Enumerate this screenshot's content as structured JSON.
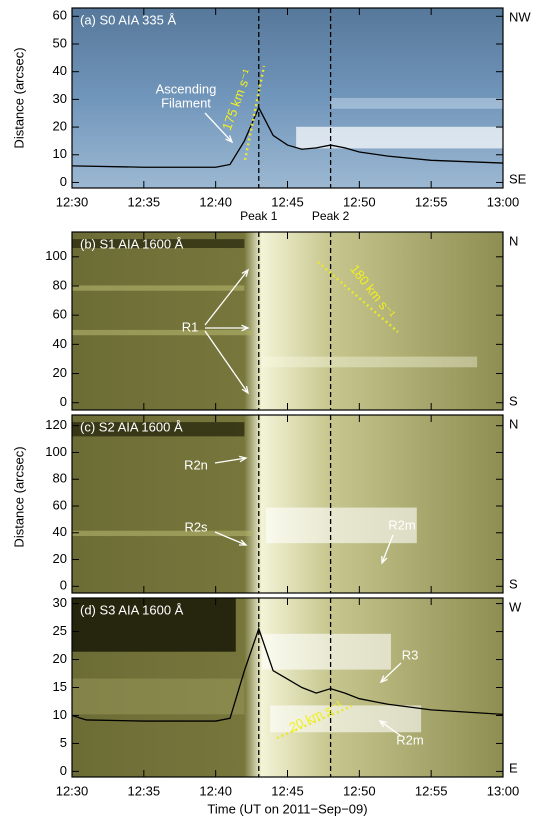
{
  "chart_data": [
    {
      "type": "line",
      "title": "(a) S0 AIA 335 Å",
      "ylabel": "Distance (arcsec)",
      "side_labels": [
        "NW",
        "SE"
      ],
      "background": "blue",
      "xlim": [
        "12:30",
        "13:00"
      ],
      "xticks": [
        "12:30",
        "12:35",
        "12:40",
        "12:45",
        "12:50",
        "12:55",
        "13:00"
      ],
      "show_xtick_labels": true,
      "ylim": [
        -2,
        63
      ],
      "yticks": [
        0,
        10,
        20,
        30,
        40,
        50,
        60
      ],
      "peaks": [
        "12:43",
        "12:48"
      ],
      "peak_labels": [
        "Peak 1",
        "Peak 2"
      ],
      "series": [
        {
          "color": "#000000",
          "x": [
            "12:30",
            "12:35",
            "12:40",
            "12:41",
            "12:42",
            "12:43",
            "12:44",
            "12:45",
            "12:46",
            "12:47",
            "12:48",
            "12:49",
            "12:50",
            "12:52",
            "12:55",
            "13:00"
          ],
          "values": [
            6,
            5.5,
            5.5,
            6.5,
            15,
            27,
            17,
            13.5,
            12,
            12.5,
            13.5,
            12.5,
            11,
            9.5,
            8,
            7
          ]
        }
      ],
      "annotations": [
        "Ascending",
        "Filament",
        "175 km s⁻¹"
      ]
    },
    {
      "type": "line",
      "title": "(b) S1 AIA 1600 Å",
      "side_labels": [
        "N",
        "S"
      ],
      "background": "olive",
      "xlim": [
        "12:30",
        "13:00"
      ],
      "xticks": [
        "12:30",
        "12:35",
        "12:40",
        "12:45",
        "12:50",
        "12:55",
        "13:00"
      ],
      "show_xtick_labels": false,
      "ylim": [
        -5,
        117
      ],
      "yticks": [
        0,
        20,
        40,
        60,
        80,
        100
      ],
      "peaks": [
        "12:43",
        "12:48"
      ],
      "series": [],
      "annotations": [
        "R1",
        "180 km s⁻¹"
      ]
    },
    {
      "type": "line",
      "title": "(c) S2 AIA 1600 Å",
      "ylabel": "Distance (arcsec)",
      "side_labels": [
        "N",
        "S"
      ],
      "background": "olive",
      "xlim": [
        "12:30",
        "13:00"
      ],
      "xticks": [
        "12:30",
        "12:35",
        "12:40",
        "12:45",
        "12:50",
        "12:55",
        "13:00"
      ],
      "show_xtick_labels": false,
      "ylim": [
        -5,
        128
      ],
      "yticks": [
        0,
        20,
        40,
        60,
        80,
        100,
        120
      ],
      "peaks": [
        "12:43",
        "12:48"
      ],
      "series": [],
      "annotations": [
        "R2n",
        "R2s",
        "R2m"
      ]
    },
    {
      "type": "line",
      "title": "(d) S3 AIA 1600 Å",
      "side_labels": [
        "W",
        "E"
      ],
      "xlabel": "Time (UT on 2011−Sep−09)",
      "background": "olive",
      "xlim": [
        "12:30",
        "13:00"
      ],
      "xticks": [
        "12:30",
        "12:35",
        "12:40",
        "12:45",
        "12:50",
        "12:55",
        "13:00"
      ],
      "show_xtick_labels": true,
      "ylim": [
        -1,
        31
      ],
      "yticks": [
        0,
        5,
        10,
        15,
        20,
        25,
        30
      ],
      "peaks": [
        "12:43",
        "12:48"
      ],
      "series": [
        {
          "color": "#000000",
          "x": [
            "12:30",
            "12:31",
            "12:35",
            "12:40",
            "12:41",
            "12:42",
            "12:43",
            "12:44",
            "12:45",
            "12:46",
            "12:47",
            "12:48",
            "12:49",
            "12:50",
            "12:52",
            "12:55",
            "13:00"
          ],
          "values": [
            10,
            9.2,
            9,
            9,
            9.5,
            18,
            25.5,
            18,
            16.5,
            15,
            14,
            14.8,
            14,
            13,
            12,
            11,
            10.2
          ]
        }
      ],
      "annotations": [
        "R3",
        "20 km s⁻¹",
        "R2m"
      ]
    }
  ]
}
